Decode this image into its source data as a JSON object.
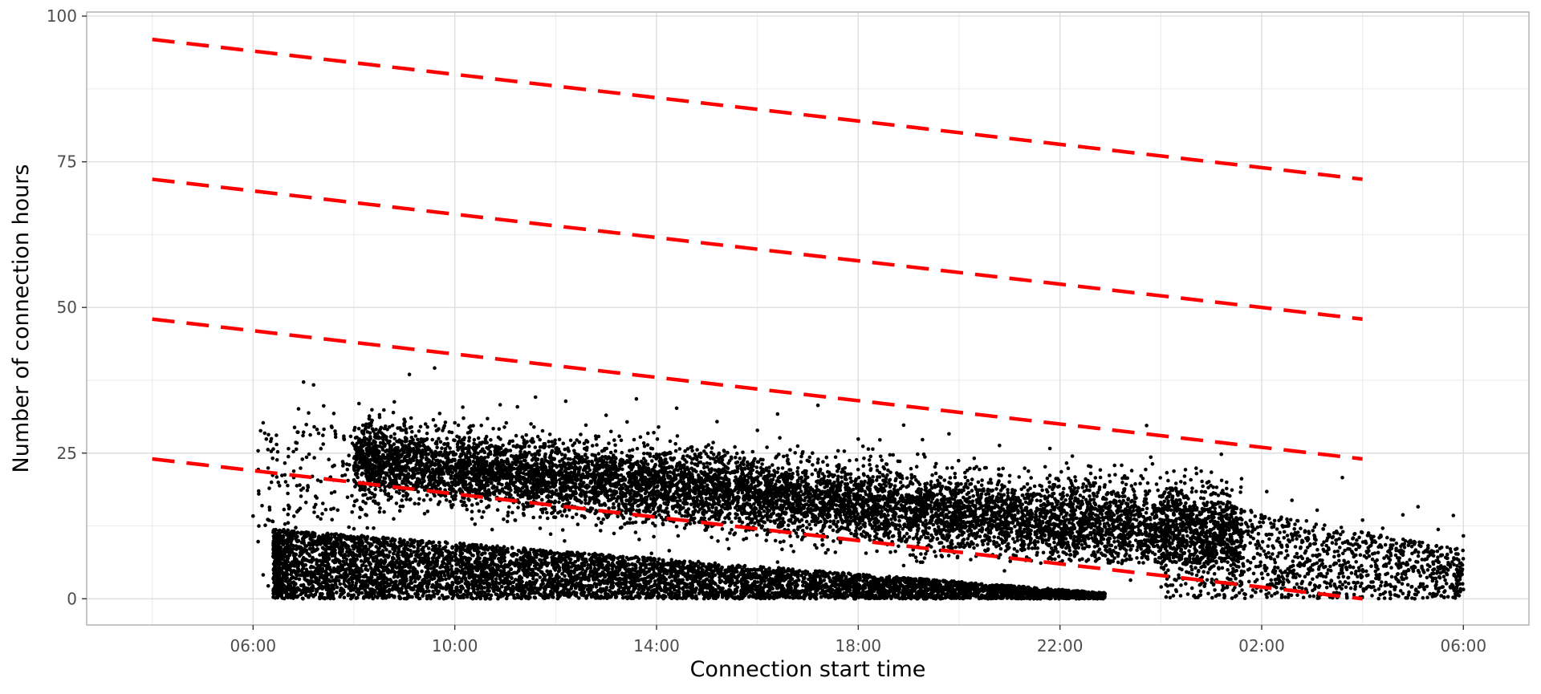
{
  "chart_data": {
    "type": "scatter",
    "title": "",
    "xlabel": "Connection start time",
    "ylabel": "Number of connection hours",
    "x_unit": "hours since 00:00 of day 1",
    "xlim": [
      2.7,
      31.3
    ],
    "ylim": [
      -4.5,
      100.7
    ],
    "x_ticks": [
      {
        "value": 6,
        "label": "06:00"
      },
      {
        "value": 10,
        "label": "10:00"
      },
      {
        "value": 14,
        "label": "14:00"
      },
      {
        "value": 18,
        "label": "18:00"
      },
      {
        "value": 22,
        "label": "22:00"
      },
      {
        "value": 26,
        "label": "02:00"
      },
      {
        "value": 30,
        "label": "06:00"
      }
    ],
    "y_ticks": [
      {
        "value": 0,
        "label": "0"
      },
      {
        "value": 25,
        "label": "25"
      },
      {
        "value": 50,
        "label": "50"
      },
      {
        "value": 75,
        "label": "75"
      },
      {
        "value": 100,
        "label": "100"
      }
    ],
    "grid": true,
    "legend": "none",
    "colors": {
      "points": "#000000",
      "reference_lines": "#ff0000",
      "grid": "#ebebeb",
      "panel_border": "#b3b3b3"
    },
    "reference_lines": [
      {
        "x": [
          4,
          28
        ],
        "y": [
          24,
          0
        ]
      },
      {
        "x": [
          4,
          28
        ],
        "y": [
          48,
          24
        ]
      },
      {
        "x": [
          4,
          28
        ],
        "y": [
          72,
          48
        ]
      },
      {
        "x": [
          4,
          28
        ],
        "y": [
          96,
          72
        ]
      }
    ],
    "series": [
      {
        "style": "points",
        "description_density": "dense clusters",
        "points": [
          [
            6.0,
            14.2
          ],
          [
            6.1,
            9.8
          ],
          [
            6.1,
            25.4
          ],
          [
            6.2,
            30.2
          ],
          [
            6.2,
            4.1
          ],
          [
            6.3,
            2.2
          ],
          [
            6.4,
            25.7
          ],
          [
            6.5,
            1.0
          ],
          [
            6.7,
            24.4
          ],
          [
            6.8,
            9.1
          ],
          [
            6.9,
            32.6
          ],
          [
            7.0,
            37.2
          ],
          [
            7.1,
            31.9
          ],
          [
            7.2,
            36.7
          ],
          [
            7.3,
            28.4
          ],
          [
            7.4,
            33.1
          ],
          [
            7.6,
            31.8
          ],
          [
            7.8,
            27.9
          ],
          [
            7.9,
            24.6
          ],
          [
            8.1,
            33.5
          ],
          [
            8.3,
            30.9
          ],
          [
            8.5,
            25.3
          ],
          [
            8.8,
            33.8
          ],
          [
            9.0,
            29.7
          ],
          [
            9.1,
            38.5
          ],
          [
            9.3,
            26.4
          ],
          [
            9.6,
            39.6
          ],
          [
            9.7,
            31.8
          ],
          [
            10.0,
            30.2
          ],
          [
            10.3,
            28.6
          ],
          [
            10.6,
            26.8
          ],
          [
            10.9,
            33.3
          ],
          [
            11.3,
            24.5
          ],
          [
            11.6,
            34.6
          ],
          [
            12.0,
            25.1
          ],
          [
            12.2,
            33.9
          ],
          [
            12.6,
            29.8
          ],
          [
            13.0,
            31.5
          ],
          [
            13.3,
            27.2
          ],
          [
            13.6,
            34.3
          ],
          [
            14.0,
            24.8
          ],
          [
            14.4,
            32.7
          ],
          [
            14.8,
            23.9
          ],
          [
            15.2,
            30.4
          ],
          [
            15.6,
            22.7
          ],
          [
            16.0,
            28.9
          ],
          [
            16.4,
            31.7
          ],
          [
            16.8,
            26.2
          ],
          [
            17.2,
            33.2
          ],
          [
            17.6,
            25.4
          ],
          [
            18.0,
            27.4
          ],
          [
            18.5,
            22.6
          ],
          [
            18.9,
            29.8
          ],
          [
            19.3,
            24.8
          ],
          [
            19.8,
            28.3
          ],
          [
            20.3,
            24.1
          ],
          [
            20.8,
            26.3
          ],
          [
            21.3,
            22.4
          ],
          [
            21.8,
            25.8
          ],
          [
            22.3,
            20.9
          ],
          [
            22.8,
            22.1
          ],
          [
            23.3,
            20.7
          ],
          [
            23.8,
            24.3
          ],
          [
            24.3,
            19.8
          ],
          [
            24.8,
            21.9
          ],
          [
            25.2,
            24.8
          ],
          [
            25.6,
            20.6
          ],
          [
            26.1,
            18.4
          ],
          [
            26.6,
            16.9
          ],
          [
            27.1,
            15.2
          ],
          [
            27.6,
            20.8
          ],
          [
            28.0,
            13.5
          ],
          [
            28.4,
            12.1
          ],
          [
            28.8,
            14.4
          ],
          [
            29.1,
            15.8
          ],
          [
            29.3,
            8.7
          ],
          [
            29.5,
            11.9
          ],
          [
            29.7,
            6.2
          ],
          [
            29.8,
            14.3
          ],
          [
            29.9,
            3.1
          ],
          [
            30.0,
            10.8
          ],
          [
            30.0,
            1.6
          ],
          [
            29.6,
            5.2
          ],
          [
            29.2,
            4.9
          ],
          [
            28.9,
            2.4
          ],
          [
            28.6,
            9.2
          ],
          [
            28.2,
            7.7
          ],
          [
            27.9,
            3.8
          ],
          [
            27.5,
            11.3
          ],
          [
            27.2,
            6.6
          ],
          [
            26.8,
            1.8
          ],
          [
            26.4,
            8.9
          ],
          [
            26.0,
            4.3
          ],
          [
            25.6,
            2.8
          ],
          [
            25.2,
            9.7
          ],
          [
            24.8,
            5.4
          ],
          [
            24.3,
            1.5
          ],
          [
            23.9,
            11.6
          ],
          [
            23.4,
            3.2
          ],
          [
            22.9,
            7.4
          ],
          [
            22.4,
            13.7
          ],
          [
            21.9,
            6.8
          ],
          [
            21.4,
            10.9
          ],
          [
            20.9,
            4.8
          ],
          [
            20.4,
            12.6
          ],
          [
            19.9,
            2.3
          ],
          [
            19.4,
            9.2
          ],
          [
            18.9,
            5.7
          ],
          [
            18.4,
            13.3
          ],
          [
            17.9,
            3.6
          ],
          [
            17.4,
            8.4
          ],
          [
            16.9,
            11.7
          ],
          [
            16.4,
            6.3
          ],
          [
            15.9,
            1.9
          ],
          [
            15.4,
            10.2
          ],
          [
            14.9,
            4.7
          ],
          [
            14.4,
            12.4
          ],
          [
            13.9,
            7.8
          ],
          [
            13.4,
            2.9
          ],
          [
            12.9,
            13.1
          ],
          [
            12.4,
            5.6
          ],
          [
            11.9,
            11.1
          ],
          [
            11.4,
            8.3
          ],
          [
            10.9,
            3.4
          ],
          [
            10.4,
            12.8
          ],
          [
            9.9,
            6.9
          ],
          [
            9.4,
            14.6
          ],
          [
            8.9,
            9.7
          ],
          [
            8.4,
            4.4
          ],
          [
            7.9,
            12.3
          ],
          [
            7.4,
            7.1
          ],
          [
            6.9,
            15.2
          ],
          [
            6.6,
            3.9
          ],
          [
            6.4,
            11.4
          ]
        ]
      }
    ]
  }
}
